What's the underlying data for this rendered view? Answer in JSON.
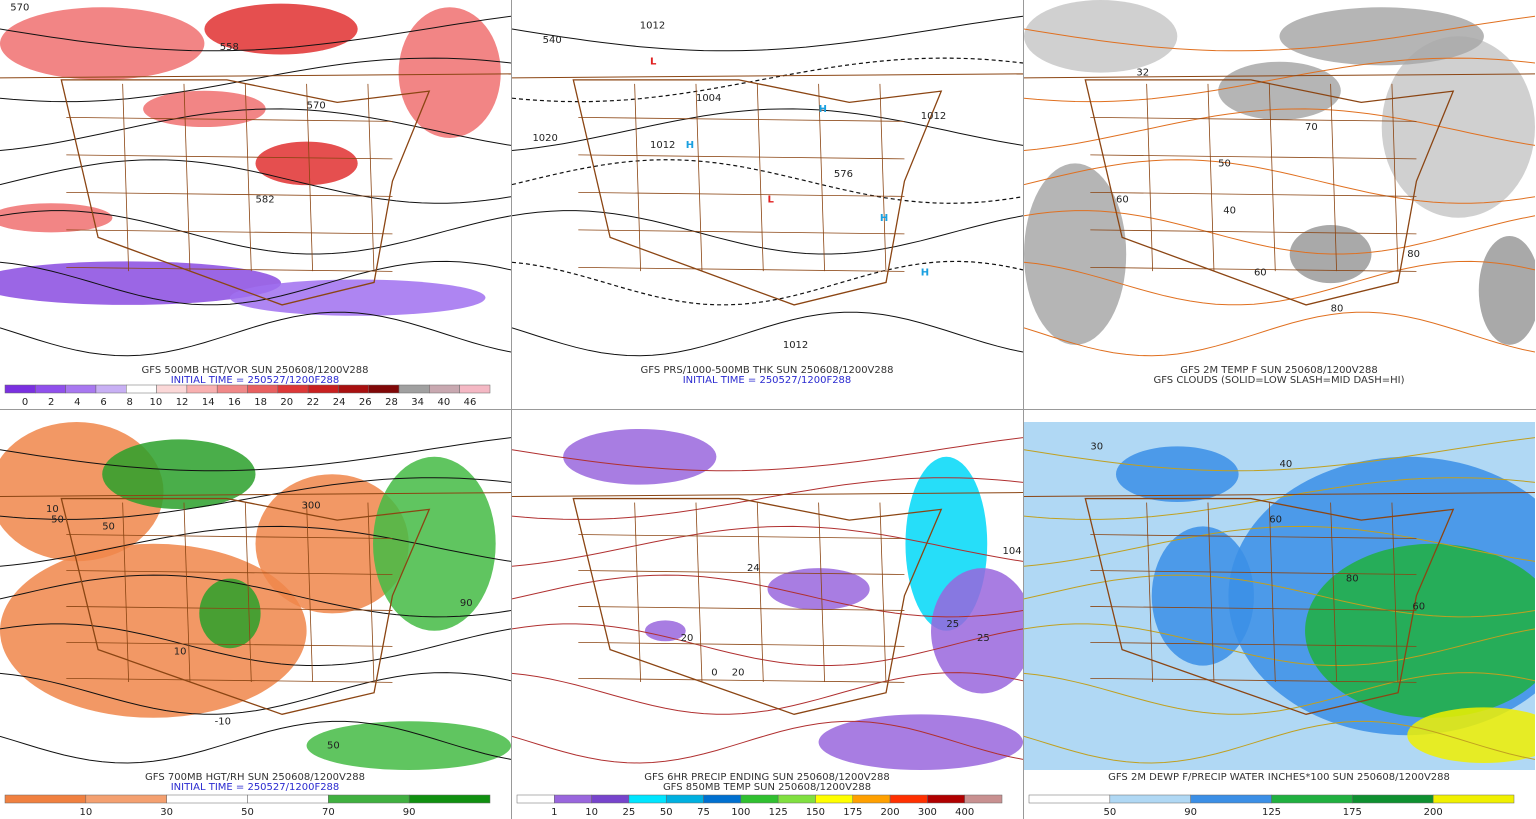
{
  "panels": [
    {
      "captions": [
        "GFS 500MB HGT/VOR SUN 250608/1200V288",
        "INITIAL TIME = 250527/1200F288"
      ],
      "caption_colors": [
        "#333333",
        "#2a2ad0"
      ],
      "map_bg": "#ffffff",
      "blob_colors": [
        "#f07070",
        "#e03030",
        "#8a4be0",
        "#a070f0"
      ],
      "colorbar": {
        "colors": [
          "#7a30e0",
          "#9050ec",
          "#a878f0",
          "#c8b0f4",
          "#ffffff",
          "#fbd8d8",
          "#f8b0b0",
          "#f08888",
          "#e86060",
          "#dc3838",
          "#c82020",
          "#a81010",
          "#800808",
          "#a0a0a0",
          "#c8a8b0",
          "#f4b8c4"
        ],
        "labels": [
          "0",
          "2",
          "4",
          "6",
          "8",
          "10",
          "12",
          "14",
          "16",
          "18",
          "20",
          "22",
          "24",
          "26",
          "28",
          "34",
          "40",
          "46"
        ]
      },
      "map_labels": [
        "570",
        "558",
        "570",
        "582"
      ]
    },
    {
      "captions": [
        "GFS PRS/1000-500MB THK SUN 250608/1200V288",
        "INITIAL TIME = 250527/1200F288"
      ],
      "caption_colors": [
        "#333333",
        "#2a2ad0"
      ],
      "map_bg": "#ffffff",
      "blob_colors": [],
      "map_labels": [
        "1012",
        "540",
        "1020",
        "1012",
        "1004",
        "576",
        "1012",
        "1012",
        "L",
        "L",
        "H",
        "H",
        "H",
        "H"
      ]
    },
    {
      "captions": [
        "GFS 2M TEMP F SUN 250608/1200V288",
        "GFS CLOUDS (SOLID=LOW SLASH=MID DASH=HI)"
      ],
      "caption_colors": [
        "#333333",
        "#333333"
      ],
      "map_bg": "#ffffff",
      "blob_colors": [
        "#a8a8a8",
        "#c8c8c8",
        "#9a9a9a"
      ],
      "map_labels": [
        "32",
        "40",
        "60",
        "70",
        "80",
        "80",
        "60",
        "50"
      ]
    },
    {
      "captions": [
        "GFS 700MB HGT/RH SUN 250608/1200V288",
        "INITIAL TIME = 250527/1200F288"
      ],
      "caption_colors": [
        "#333333",
        "#2a2ad0"
      ],
      "map_bg": "#ffffff",
      "blob_colors": [
        "#f0864a",
        "#2aa02a",
        "#44bb44"
      ],
      "colorbar": {
        "colors": [
          "#f08040",
          "#f4a070",
          "#ffffff",
          "#ffffff",
          "#40b040",
          "#109010"
        ],
        "labels": [
          "10",
          "30",
          "50",
          "70",
          "90"
        ]
      },
      "map_labels": [
        "50",
        "300",
        "10",
        "50",
        "-10",
        "50",
        "10",
        "90"
      ]
    },
    {
      "captions": [
        "GFS 6HR PRECIP ENDING SUN 250608/1200V288",
        "GFS 850MB TEMP SUN 250608/1200V288"
      ],
      "caption_colors": [
        "#333333",
        "#333333"
      ],
      "map_bg": "#ffffff",
      "blob_colors": [
        "#9966dd",
        "#00d8f8",
        "#9966dd"
      ],
      "colorbar": {
        "colors": [
          "#ffffff",
          "#9966dd",
          "#7744cc",
          "#00e5ff",
          "#00b0e0",
          "#0070d0",
          "#30c030",
          "#80e040",
          "#ffff00",
          "#ffa000",
          "#ff3000",
          "#b00000",
          "#c89090"
        ],
        "labels": [
          "1",
          "10",
          "25",
          "50",
          "75",
          "100",
          "125",
          "150",
          "175",
          "200",
          "300",
          "400"
        ]
      },
      "map_labels": [
        "24",
        "25",
        "104",
        "20",
        "0",
        "20",
        "25"
      ]
    },
    {
      "captions": [
        "GFS 2M DEWP F/PRECIP WATER INCHES*100 SUN 250608/1200V288"
      ],
      "caption_colors": [
        "#333333"
      ],
      "map_bg": "#b0d8f4",
      "blob_colors": [
        "#3b8fe6",
        "#20b040",
        "#f0f000"
      ],
      "colorbar": {
        "colors": [
          "#ffffff",
          "#b0d8f4",
          "#3b8fe6",
          "#20b040",
          "#0e9030",
          "#f0f000"
        ],
        "labels": [
          "50",
          "90",
          "125",
          "175",
          "200"
        ]
      },
      "map_labels": [
        "30",
        "40",
        "60",
        "80",
        "60"
      ]
    }
  ]
}
